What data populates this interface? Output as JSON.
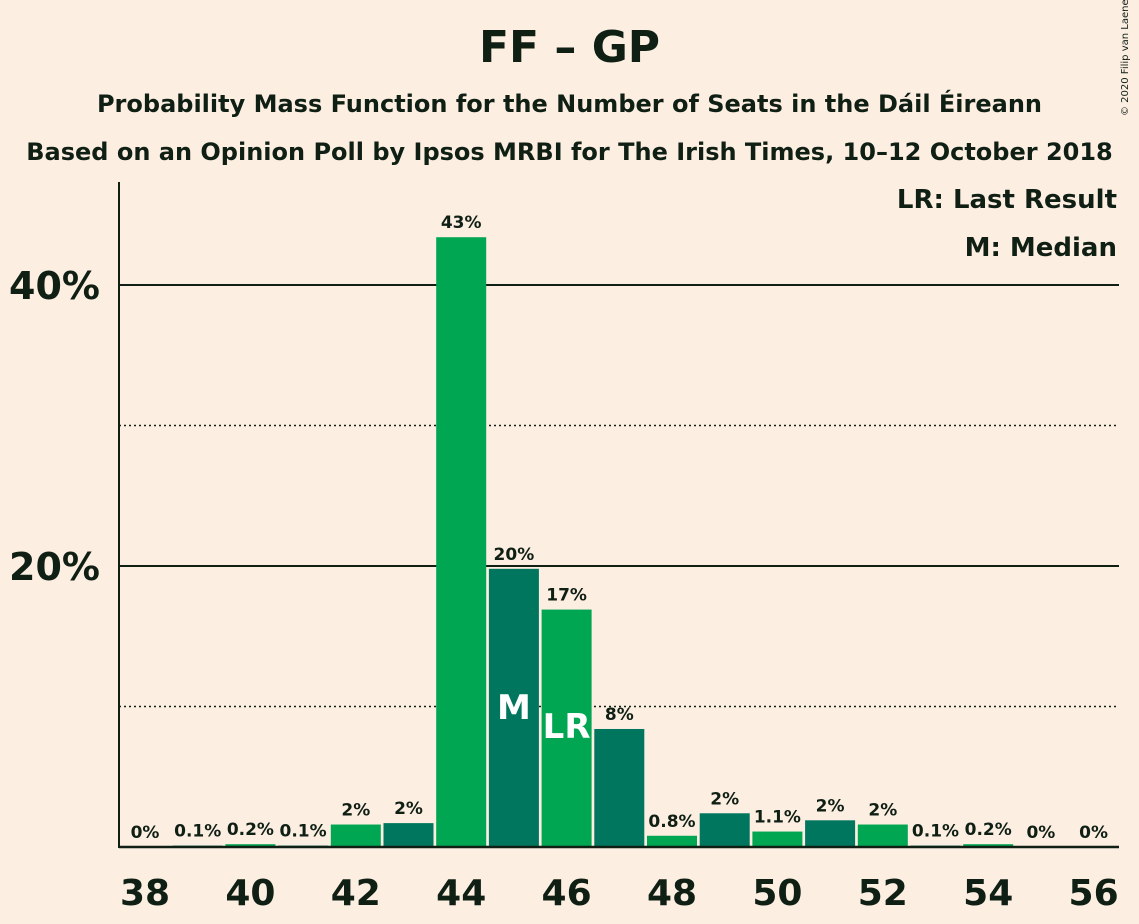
{
  "title": "FF – GP",
  "subtitle_1": "Probability Mass Function for the Number of Seats in the Dáil Éireann",
  "subtitle_2": "Based on an Opinion Poll by Ipsos MRBI for The Irish Times, 10–12 October 2018",
  "copyright": "© 2020 Filip van Laenen",
  "legend": {
    "last_result": "LR: Last Result",
    "median": "M: Median"
  },
  "colors": {
    "background": "#FDEEE2",
    "bar_light": "#00A651",
    "bar_dark": "#00765F",
    "text": "#0F1F14"
  },
  "chart_data": {
    "type": "bar",
    "x": [
      38,
      39,
      40,
      41,
      42,
      43,
      44,
      45,
      46,
      47,
      48,
      49,
      50,
      51,
      52,
      53,
      54,
      55,
      56
    ],
    "values": [
      0,
      0.1,
      0.2,
      0.1,
      1.6,
      1.7,
      43.4,
      19.8,
      16.9,
      8.4,
      0.8,
      2.4,
      1.1,
      1.9,
      1.6,
      0.1,
      0.2,
      0,
      0
    ],
    "data_labels": [
      "0%",
      "0.1%",
      "0.2%",
      "0.1%",
      "2%",
      "2%",
      "43%",
      "20%",
      "17%",
      "8%",
      "0.8%",
      "2%",
      "1.1%",
      "2%",
      "2%",
      "0.1%",
      "0.2%",
      "0%",
      "0%"
    ],
    "x_tick_labels": [
      "38",
      "40",
      "42",
      "44",
      "46",
      "48",
      "50",
      "52",
      "54",
      "56"
    ],
    "y_tick_labels": [
      "20%",
      "40%"
    ],
    "ylim": [
      0,
      47
    ],
    "solid_gridlines": [
      20,
      40
    ],
    "dotted_gridlines": [
      10,
      30
    ],
    "median_seat": 45,
    "median_mark": "M",
    "last_result_seat": 46,
    "last_result_mark": "LR",
    "legend_position": "top-right"
  }
}
